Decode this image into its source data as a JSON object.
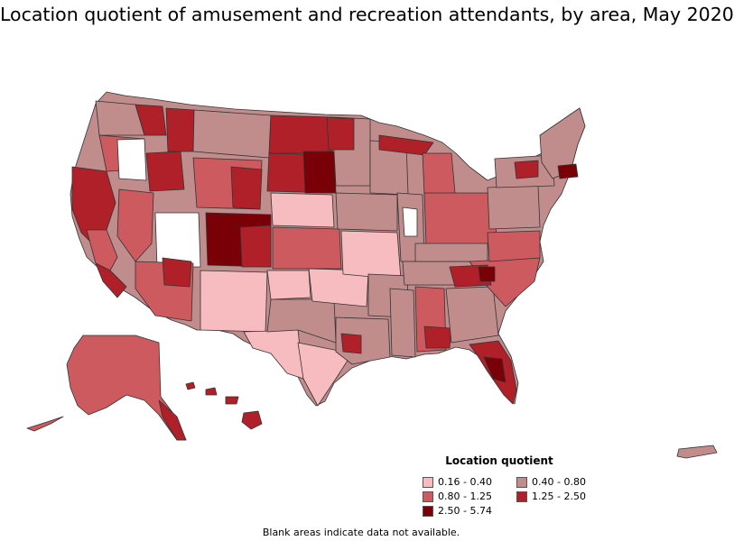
{
  "title": "Location quotient of amusement and recreation attendants, by area, May 2020",
  "legend": {
    "title": "Location quotient",
    "items": [
      {
        "label": "0.16 - 0.40",
        "color": "#f7bcc0"
      },
      {
        "label": "0.40 - 0.80",
        "color": "#c08c8c"
      },
      {
        "label": "0.80 - 1.25",
        "color": "#cc5a5f"
      },
      {
        "label": "1.25 - 2.50",
        "color": "#b02028"
      },
      {
        "label": "2.50 - 5.74",
        "color": "#7a0008"
      }
    ]
  },
  "note": "Blank areas indicate data not available.",
  "colors": {
    "border": "#333333",
    "blank": "#ffffff"
  }
}
